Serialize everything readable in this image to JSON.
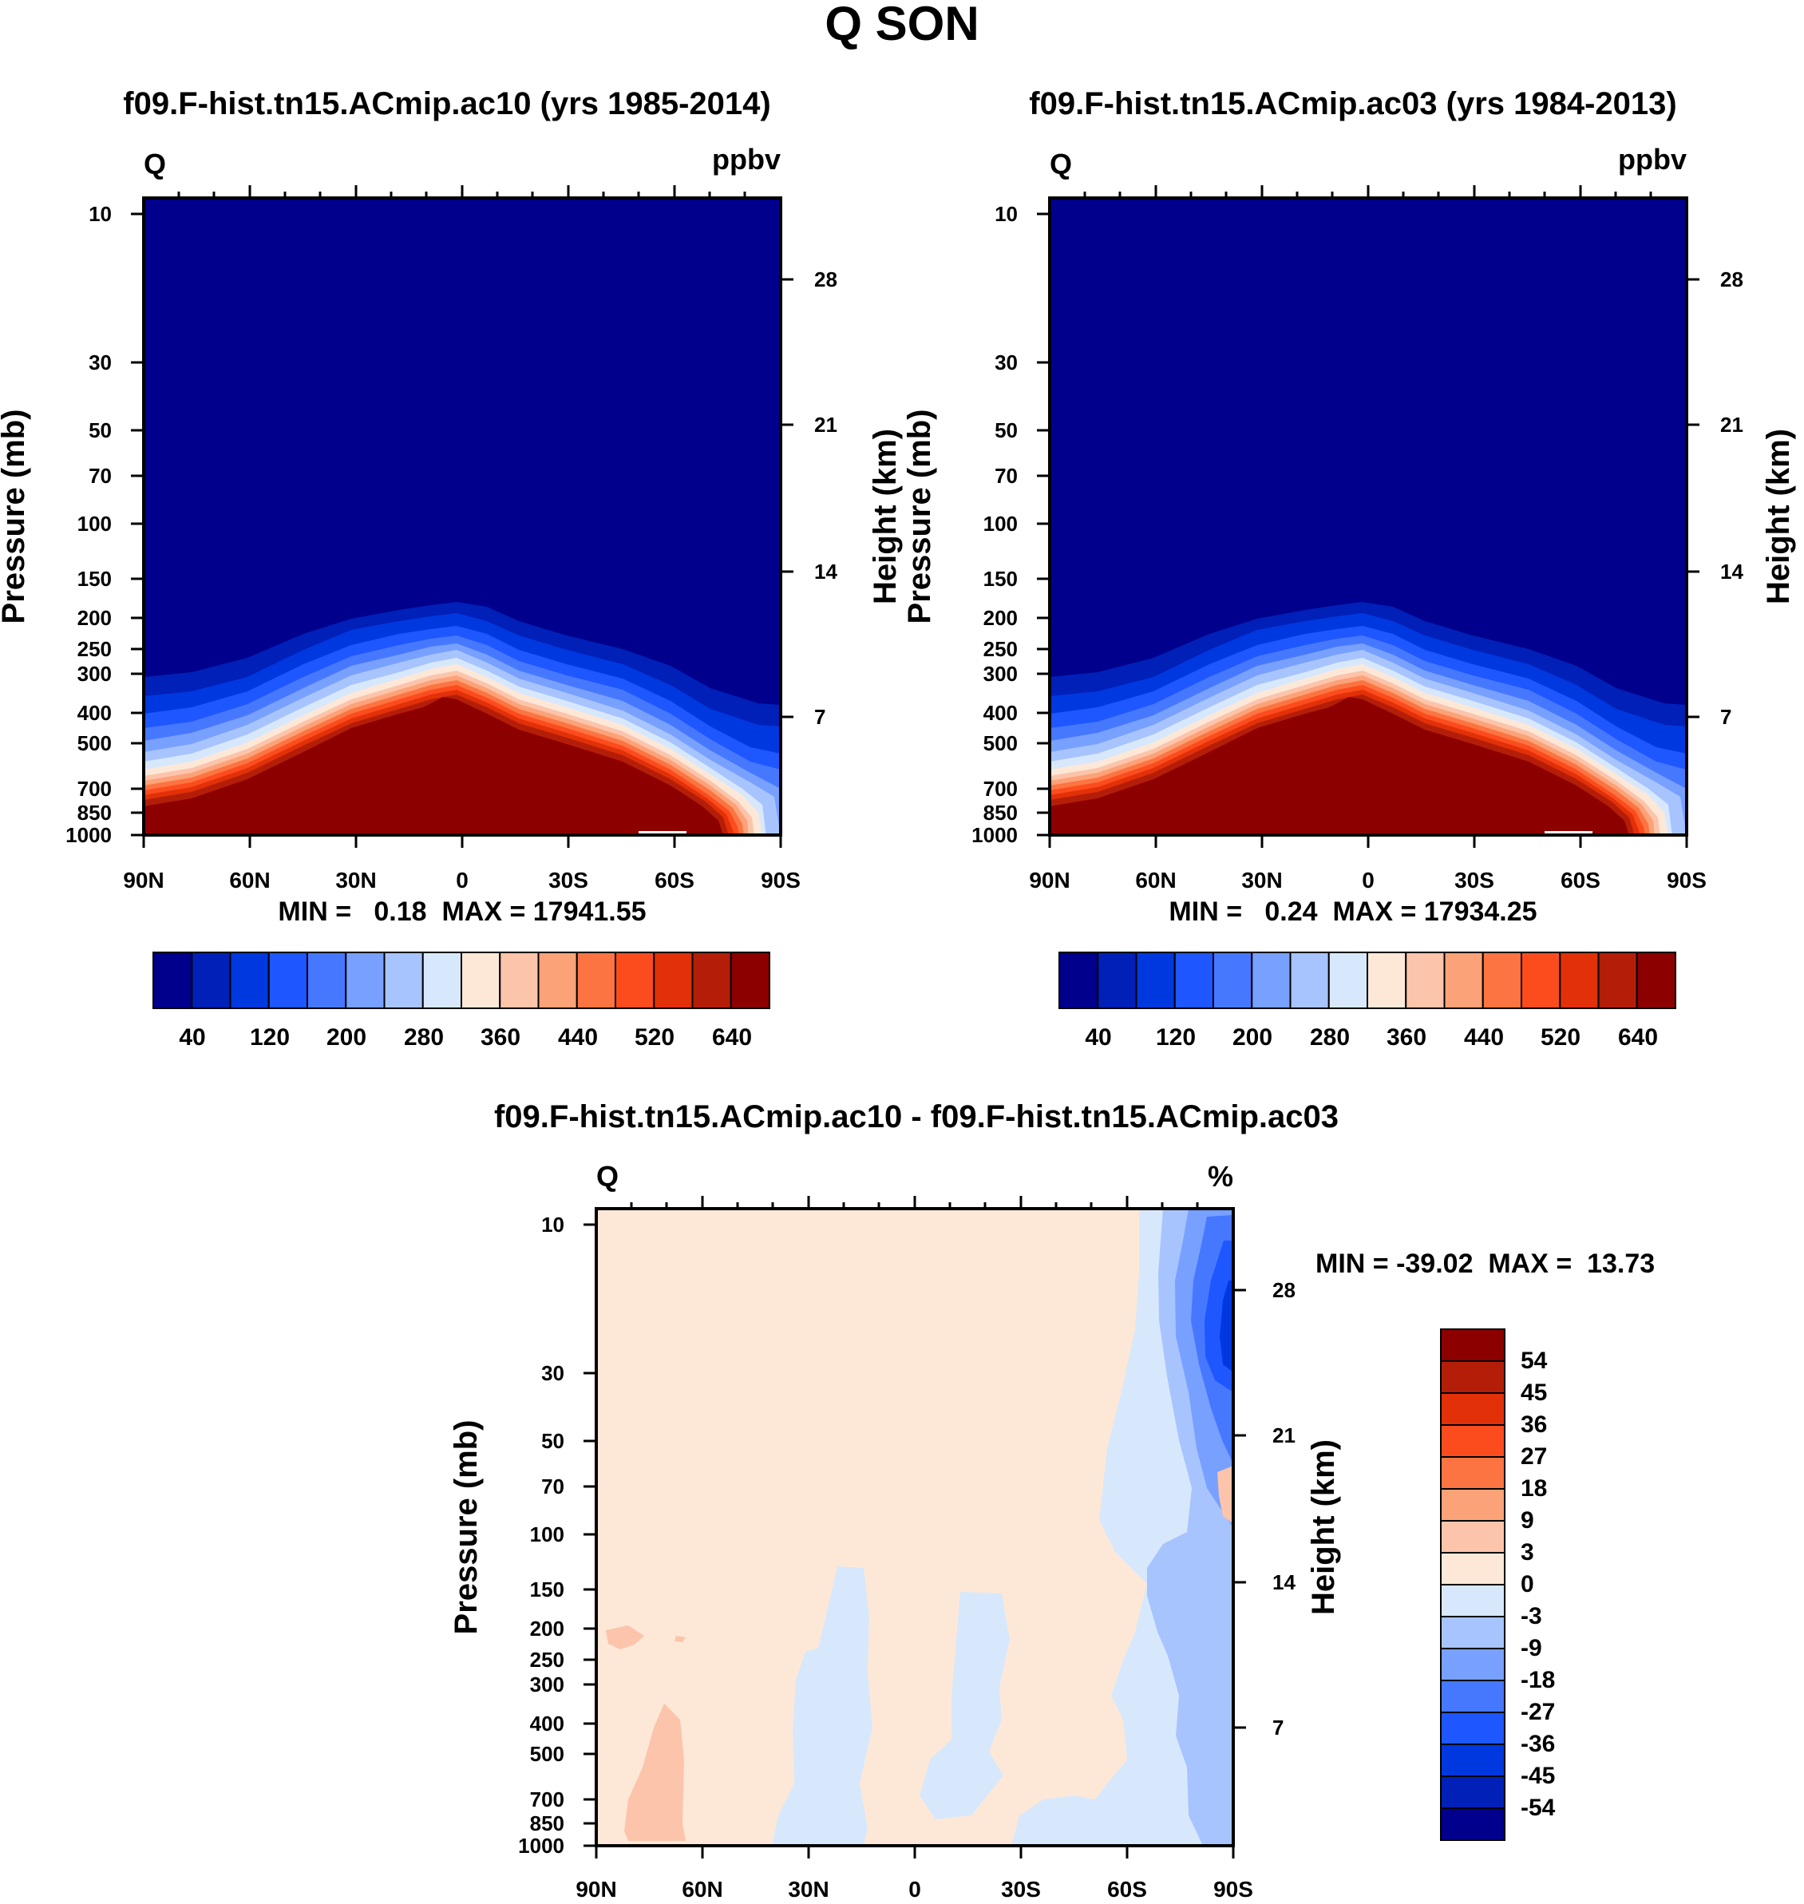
{
  "figure_title": "Q SON",
  "chart_data": [
    {
      "type": "heatmap",
      "title": "f09.F-hist.tn15.ACmip.ac10 (yrs 1985-2014)",
      "corner_left": "Q",
      "corner_right": "ppbv",
      "ylabel": "Pressure (mb)",
      "ylabel_right": "Height (km)",
      "x_ticks": [
        "90N",
        "60N",
        "30N",
        "0",
        "30S",
        "60S",
        "90S"
      ],
      "y_ticks": [
        "10",
        "30",
        "50",
        "70",
        "100",
        "150",
        "200",
        "250",
        "300",
        "400",
        "500",
        "700",
        "850",
        "1000"
      ],
      "y_ticks_right": [
        "28",
        "21",
        "14",
        "7"
      ],
      "stats": "MIN =   0.18  MAX = 17941.55",
      "colorbar_labels": [
        "40",
        "120",
        "200",
        "280",
        "360",
        "440",
        "520",
        "640"
      ]
    },
    {
      "type": "heatmap",
      "title": "f09.F-hist.tn15.ACmip.ac03 (yrs 1984-2013)",
      "corner_left": "Q",
      "corner_right": "ppbv",
      "ylabel": "Pressure (mb)",
      "ylabel_right": "Height (km)",
      "x_ticks": [
        "90N",
        "60N",
        "30N",
        "0",
        "30S",
        "60S",
        "90S"
      ],
      "y_ticks": [
        "10",
        "30",
        "50",
        "70",
        "100",
        "150",
        "200",
        "250",
        "300",
        "400",
        "500",
        "700",
        "850",
        "1000"
      ],
      "y_ticks_right": [
        "28",
        "21",
        "14",
        "7"
      ],
      "stats": "MIN =   0.24  MAX = 17934.25",
      "colorbar_labels": [
        "40",
        "120",
        "200",
        "280",
        "360",
        "440",
        "520",
        "640"
      ]
    },
    {
      "type": "heatmap",
      "title": "f09.F-hist.tn15.ACmip.ac10 - f09.F-hist.tn15.ACmip.ac03",
      "corner_left": "Q",
      "corner_right": "%",
      "ylabel": "Pressure (mb)",
      "ylabel_right": "Height (km)",
      "x_ticks": [
        "90N",
        "60N",
        "30N",
        "0",
        "30S",
        "60S",
        "90S"
      ],
      "y_ticks": [
        "10",
        "30",
        "50",
        "70",
        "100",
        "150",
        "200",
        "250",
        "300",
        "400",
        "500",
        "700",
        "850",
        "1000"
      ],
      "y_ticks_right": [
        "28",
        "21",
        "14",
        "7"
      ],
      "stats": "MIN = -39.02  MAX =  13.73",
      "colorbar_labels": [
        "54",
        "45",
        "36",
        "27",
        "18",
        "9",
        "3",
        "0",
        "-3",
        "-9",
        "-18",
        "-27",
        "-36",
        "-45",
        "-54"
      ]
    }
  ],
  "colors": {
    "seq": [
      "#00008c",
      "#0020b8",
      "#0038e0",
      "#1e56ff",
      "#4678ff",
      "#78a0ff",
      "#a8c4ff",
      "#d8e8fc",
      "#fde8d8",
      "#fcc4aa",
      "#fca278",
      "#fc7442",
      "#fc4c1e",
      "#e23008",
      "#b41e08",
      "#8c0000"
    ],
    "diff": [
      "#8c0000",
      "#b41e08",
      "#e23008",
      "#fc4c1e",
      "#fc7442",
      "#fca278",
      "#fcc4aa",
      "#fde8d8",
      "#d8e8fc",
      "#a8c4ff",
      "#78a0ff",
      "#4678ff",
      "#1e56ff",
      "#0038e0",
      "#0020b8",
      "#00008c"
    ]
  }
}
